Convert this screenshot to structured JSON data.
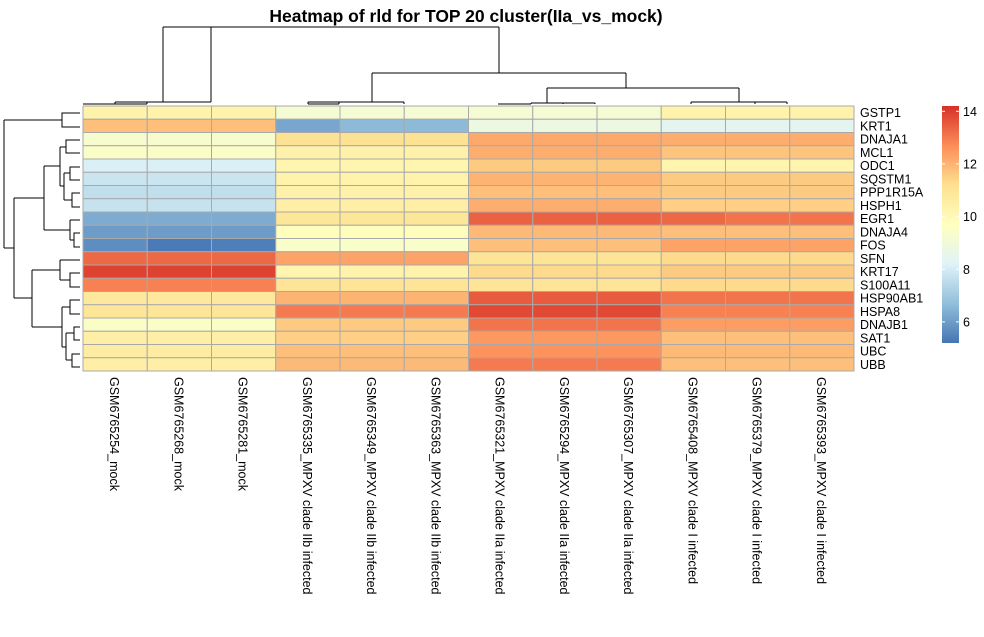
{
  "chart_data": {
    "type": "heatmap",
    "title": "Heatmap of rld for TOP 20 cluster(IIa_vs_mock)",
    "rows": [
      "GSTP1",
      "KRT1",
      "DNAJA1",
      "MCL1",
      "ODC1",
      "SQSTM1",
      "PPP1R15A",
      "HSPH1",
      "EGR1",
      "DNAJA4",
      "FOS",
      "SFN",
      "KRT17",
      "S100A11",
      "HSP90AB1",
      "HSPA8",
      "DNAJB1",
      "SAT1",
      "UBC",
      "UBB"
    ],
    "columns": [
      "GSM6765254_mock",
      "GSM6765268_mock",
      "GSM6765281_mock",
      "GSM6765335_MPXV clade IIb infected",
      "GSM6765349_MPXV clade IIb infected",
      "GSM6765363_MPXV clade IIb infected",
      "GSM6765321_MPXV clade IIa infected",
      "GSM6765294_MPXV clade IIa infected",
      "GSM6765307_MPXV clade IIa infected",
      "GSM6765408_MPXV clade I infected",
      "GSM6765379_MPXV clade I infected",
      "GSM6765393_MPXV clade I infected"
    ],
    "values": [
      [
        10.3,
        10.3,
        10.3,
        9.2,
        9.2,
        9.2,
        9.2,
        9.2,
        9.2,
        10.3,
        10.3,
        10.3
      ],
      [
        11.8,
        11.8,
        11.8,
        6.2,
        6.6,
        6.6,
        8.8,
        8.8,
        8.8,
        8.4,
        8.4,
        8.4
      ],
      [
        9.3,
        9.3,
        9.3,
        11.1,
        11.1,
        11.1,
        12.2,
        12.2,
        12.2,
        12.1,
        12.1,
        12.1
      ],
      [
        9.5,
        9.5,
        9.5,
        10.4,
        10.4,
        10.4,
        12.1,
        12.1,
        12.1,
        11.7,
        11.7,
        11.7
      ],
      [
        8.1,
        8.1,
        8.1,
        10.2,
        10.2,
        10.2,
        11.6,
        11.6,
        11.6,
        10.2,
        10.2,
        10.2
      ],
      [
        7.8,
        7.8,
        7.8,
        10.3,
        10.3,
        10.3,
        12.0,
        12.0,
        12.0,
        11.6,
        11.6,
        11.6
      ],
      [
        7.6,
        7.6,
        7.6,
        10.4,
        10.4,
        10.4,
        11.8,
        11.8,
        11.8,
        11.6,
        11.6,
        11.6
      ],
      [
        7.7,
        7.7,
        7.7,
        10.5,
        10.5,
        10.5,
        12.1,
        12.1,
        12.1,
        11.5,
        11.5,
        11.5
      ],
      [
        6.3,
        6.3,
        6.3,
        10.9,
        10.9,
        10.9,
        13.4,
        13.4,
        13.4,
        13.3,
        13.1,
        13.1
      ],
      [
        6.0,
        6.0,
        6.0,
        9.8,
        9.8,
        9.8,
        11.9,
        11.9,
        11.9,
        11.8,
        11.8,
        11.8
      ],
      [
        5.7,
        5.3,
        5.4,
        9.4,
        9.4,
        9.4,
        11.8,
        11.8,
        11.8,
        12.3,
        12.3,
        12.3
      ],
      [
        13.3,
        13.3,
        13.3,
        12.3,
        12.3,
        12.3,
        11.0,
        11.0,
        11.0,
        11.3,
        11.3,
        11.3
      ],
      [
        13.9,
        13.9,
        13.9,
        10.2,
        10.3,
        10.3,
        11.3,
        11.3,
        11.3,
        11.6,
        11.6,
        11.6
      ],
      [
        12.9,
        12.9,
        12.9,
        11.0,
        11.0,
        11.0,
        11.0,
        11.0,
        11.0,
        11.3,
        11.3,
        11.3
      ],
      [
        10.8,
        10.8,
        10.8,
        12.0,
        12.0,
        12.0,
        13.5,
        13.5,
        13.5,
        13.1,
        13.1,
        13.1
      ],
      [
        10.9,
        10.9,
        10.9,
        13.0,
        13.0,
        13.0,
        13.8,
        13.8,
        13.8,
        12.9,
        12.9,
        12.9
      ],
      [
        9.5,
        9.5,
        9.5,
        11.6,
        11.6,
        11.6,
        13.1,
        13.1,
        13.1,
        12.4,
        12.4,
        12.4
      ],
      [
        10.5,
        10.5,
        10.5,
        11.5,
        11.5,
        11.5,
        12.5,
        12.5,
        12.5,
        11.8,
        11.8,
        11.8
      ],
      [
        10.6,
        10.6,
        10.6,
        11.8,
        11.8,
        11.8,
        12.6,
        12.6,
        12.6,
        11.9,
        11.9,
        11.9
      ],
      [
        10.5,
        10.5,
        10.5,
        11.9,
        11.9,
        11.9,
        13.0,
        13.0,
        13.0,
        11.8,
        11.8,
        11.8
      ]
    ],
    "color_scale": {
      "min": 5.2,
      "max": 14.2,
      "stops": [
        "#4575b4",
        "#91bfdb",
        "#e0f3f8",
        "#ffffbf",
        "#fee090",
        "#fc8d59",
        "#d73027"
      ]
    },
    "legend": {
      "ticks": [
        6,
        8,
        10,
        12,
        14
      ],
      "placement": "right"
    },
    "grid": true,
    "row_dendrogram": true,
    "column_dendrogram": true
  }
}
